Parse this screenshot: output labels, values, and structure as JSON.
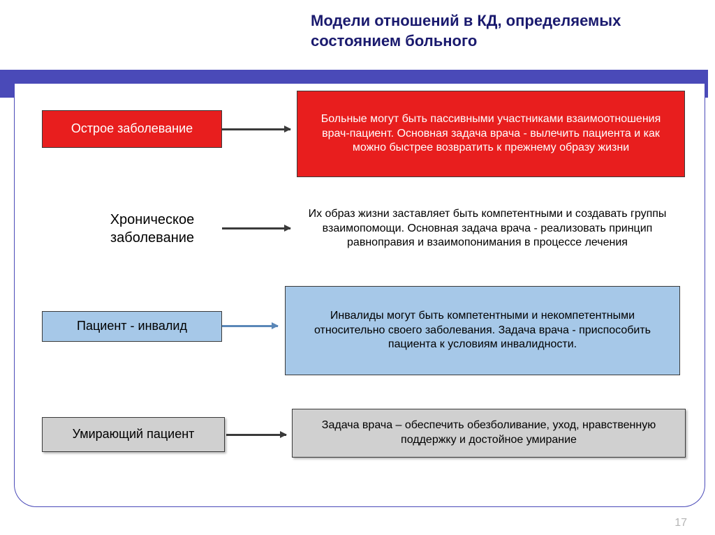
{
  "title": "Модели отношений в КД, определяемых состоянием больного",
  "page_number": "17",
  "colors": {
    "header_bar": "#4a4ab8",
    "frame_border": "#4a4ab8",
    "title_color": "#1a1a6e",
    "red_fill": "#e81e1e",
    "blue_fill": "#a6c8e8",
    "grey_fill": "#d0d0d0",
    "arrow_dark": "#3a3a3a",
    "arrow_blue": "#5a87b8"
  },
  "rows": [
    {
      "label": "Острое заболевание",
      "desc": "Больные могут быть пассивными участниками взаимоотношения врач-пациент. Основная задача врача - вылечить пациента и как можно быстрее возвратить к прежнему образу жизни",
      "style": "red"
    },
    {
      "label": "Хроническое заболевание",
      "desc": "Их образ жизни заставляет быть компетентными и создавать группы взаимопомощи. Основная задача врача - реализовать принцип равноправия и взаимопонимания в процессе лечения",
      "style": "plain"
    },
    {
      "label": "Пациент - инвалид",
      "desc": "Инвалиды могут быть компетентными и некомпетентными относительно своего заболевания. Задача врача - приспособить пациента к условиям инвалидности.",
      "style": "blue"
    },
    {
      "label": "Умирающий пациент",
      "desc": "Задача врача – обеспечить обезболивание, уход, нравственную поддержку и достойное умирание",
      "style": "grey"
    }
  ]
}
